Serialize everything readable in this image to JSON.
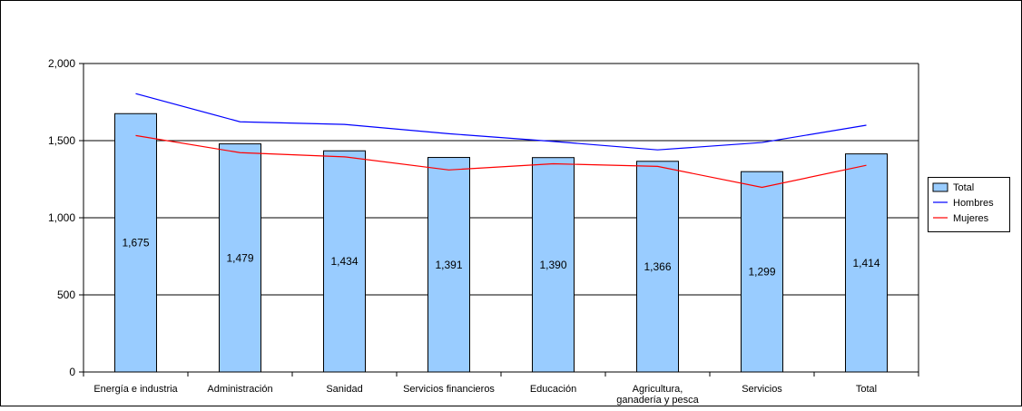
{
  "chart_data": {
    "type": "bar",
    "categories": [
      "Energía e industria",
      "Administración",
      "Sanidad",
      "Servicios financieros",
      "Educación",
      [
        "Agricultura,",
        "ganadería y pesca"
      ],
      "Servicios",
      "Total"
    ],
    "series": [
      {
        "name": "Total",
        "type": "bar",
        "color": "#99ccff",
        "values": [
          1675,
          1479,
          1434,
          1391,
          1390,
          1366,
          1299,
          1414
        ],
        "data_labels": [
          "1,675",
          "1,479",
          "1,434",
          "1,391",
          "1,390",
          "1,366",
          "1,299",
          "1,414"
        ]
      },
      {
        "name": "Hombres",
        "type": "line",
        "color": "#0000ff",
        "values": [
          1805,
          1622,
          1605,
          1545,
          1495,
          1440,
          1488,
          1600
        ]
      },
      {
        "name": "Mujeres",
        "type": "line",
        "color": "#ff0000",
        "values": [
          1533,
          1422,
          1395,
          1310,
          1350,
          1333,
          1197,
          1340
        ]
      }
    ],
    "y_ticks": [
      "0",
      "500",
      "1,000",
      "1,500",
      "2,000"
    ],
    "ylim": [
      0,
      2000
    ],
    "grid": true,
    "legend_position": "right"
  }
}
